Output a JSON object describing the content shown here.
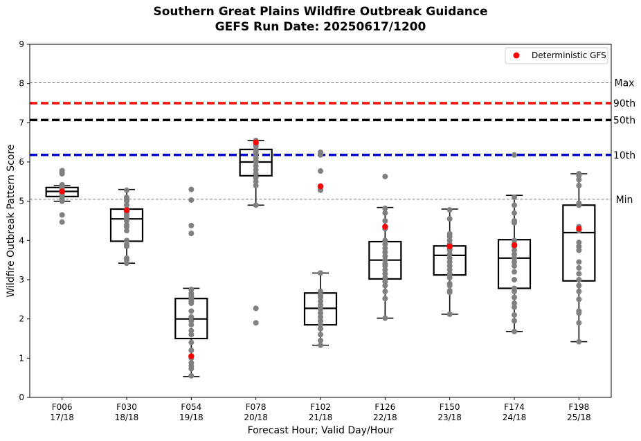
{
  "chart_data": {
    "type": "box",
    "title": "Southern Great Plains Wildfire Outbreak Guidance",
    "subtitle": "GEFS Run Date: 20250617/1200",
    "xlabel": "Forecast Hour; Valid Day/Hour",
    "ylabel": "Wildfire Outbreak Pattern Score",
    "ylim": [
      0,
      9
    ],
    "yticks": [
      0,
      1,
      2,
      3,
      4,
      5,
      6,
      7,
      8,
      9
    ],
    "categories": [
      {
        "hour": "F006",
        "valid": "17/18"
      },
      {
        "hour": "F030",
        "valid": "18/18"
      },
      {
        "hour": "F054",
        "valid": "19/18"
      },
      {
        "hour": "F078",
        "valid": "20/18"
      },
      {
        "hour": "F102",
        "valid": "21/18"
      },
      {
        "hour": "F126",
        "valid": "22/18"
      },
      {
        "hour": "F150",
        "valid": "23/18"
      },
      {
        "hour": "F174",
        "valid": "24/18"
      },
      {
        "hour": "F198",
        "valid": "25/18"
      }
    ],
    "reference_lines": [
      {
        "label": "Max",
        "value": 8.02,
        "color": "#808080",
        "style": "dashed-thin"
      },
      {
        "label": "90th",
        "value": 7.5,
        "color": "#ff0000",
        "style": "dashed-thick"
      },
      {
        "label": "50th",
        "value": 7.07,
        "color": "#000000",
        "style": "dashed-thick"
      },
      {
        "label": "10th",
        "value": 6.18,
        "color": "#0000cc",
        "style": "dashed-thick"
      },
      {
        "label": "Min",
        "value": 5.05,
        "color": "#808080",
        "style": "dashed-thin"
      }
    ],
    "boxes": [
      {
        "q1": 5.12,
        "median": 5.25,
        "q3": 5.35,
        "whisker_low": 5.0,
        "whisker_high": 5.4
      },
      {
        "q1": 3.98,
        "median": 4.55,
        "q3": 4.8,
        "whisker_low": 3.42,
        "whisker_high": 5.3
      },
      {
        "q1": 1.5,
        "median": 2.0,
        "q3": 2.52,
        "whisker_low": 0.53,
        "whisker_high": 2.78
      },
      {
        "q1": 5.65,
        "median": 6.0,
        "q3": 6.32,
        "whisker_low": 4.9,
        "whisker_high": 6.55
      },
      {
        "q1": 1.85,
        "median": 2.27,
        "q3": 2.66,
        "whisker_low": 1.33,
        "whisker_high": 3.17
      },
      {
        "q1": 3.02,
        "median": 3.5,
        "q3": 3.97,
        "whisker_low": 2.02,
        "whisker_high": 4.84
      },
      {
        "q1": 3.12,
        "median": 3.62,
        "q3": 3.86,
        "whisker_low": 2.12,
        "whisker_high": 4.8
      },
      {
        "q1": 2.78,
        "median": 3.55,
        "q3": 4.02,
        "whisker_low": 1.68,
        "whisker_high": 5.15
      },
      {
        "q1": 2.97,
        "median": 4.2,
        "q3": 4.9,
        "whisker_low": 1.42,
        "whisker_high": 5.7
      }
    ],
    "members": [
      [
        4.47,
        4.65,
        5.0,
        5.05,
        5.1,
        5.15,
        5.2,
        5.22,
        5.25,
        5.28,
        5.3,
        5.33,
        5.35,
        5.38,
        5.4,
        5.42,
        5.7,
        5.75,
        5.78
      ],
      [
        3.42,
        3.5,
        3.55,
        3.85,
        3.9,
        4.0,
        4.25,
        4.35,
        4.4,
        4.5,
        4.55,
        4.6,
        4.65,
        4.7,
        4.75,
        4.8,
        4.9,
        5.0,
        5.05,
        5.1,
        5.28
      ],
      [
        0.55,
        0.73,
        0.8,
        0.88,
        1.0,
        1.2,
        1.4,
        1.6,
        1.7,
        1.85,
        1.95,
        2.05,
        2.2,
        2.4,
        2.45,
        2.5,
        2.55,
        2.6,
        2.65,
        2.75,
        4.18,
        4.38,
        5.03,
        5.3
      ],
      [
        1.9,
        2.27,
        4.9,
        5.4,
        5.5,
        5.6,
        5.7,
        5.8,
        5.9,
        6.0,
        6.05,
        6.1,
        6.2,
        6.25,
        6.3,
        6.4,
        6.45,
        6.5,
        6.55
      ],
      [
        1.33,
        1.45,
        1.6,
        1.75,
        1.85,
        1.95,
        2.05,
        2.15,
        2.25,
        2.35,
        2.45,
        2.55,
        2.6,
        2.7,
        3.17,
        5.28,
        5.3,
        5.77,
        6.18,
        6.25
      ],
      [
        2.02,
        2.52,
        2.7,
        2.85,
        2.95,
        3.05,
        3.15,
        3.25,
        3.35,
        3.4,
        3.5,
        3.6,
        3.7,
        3.8,
        3.9,
        4.0,
        4.3,
        4.5,
        4.7,
        4.82,
        5.63
      ],
      [
        2.12,
        2.68,
        2.72,
        2.85,
        2.9,
        3.05,
        3.15,
        3.25,
        3.35,
        3.45,
        3.55,
        3.65,
        3.75,
        3.8,
        3.9,
        4.0,
        4.1,
        4.17,
        4.55,
        4.78
      ],
      [
        1.68,
        1.95,
        2.1,
        2.3,
        2.4,
        2.55,
        2.7,
        2.78,
        3.0,
        3.2,
        3.35,
        3.45,
        3.55,
        3.65,
        3.75,
        3.85,
        3.9,
        4.0,
        4.45,
        4.5,
        4.7,
        4.9,
        5.1,
        6.18
      ],
      [
        1.42,
        1.9,
        2.15,
        2.2,
        2.5,
        2.7,
        2.85,
        3.0,
        3.15,
        3.3,
        3.45,
        3.75,
        3.85,
        3.95,
        4.25,
        4.35,
        4.9,
        4.95,
        5.4,
        5.55,
        5.65,
        5.7
      ]
    ],
    "deterministic": {
      "name": "Deterministic GFS",
      "color": "#ff0000",
      "values": [
        5.25,
        4.77,
        1.05,
        6.5,
        5.38,
        4.35,
        3.85,
        3.88,
        4.3
      ]
    },
    "member_color": "#808080",
    "legend": {
      "position": "top-right"
    },
    "grid": false
  }
}
